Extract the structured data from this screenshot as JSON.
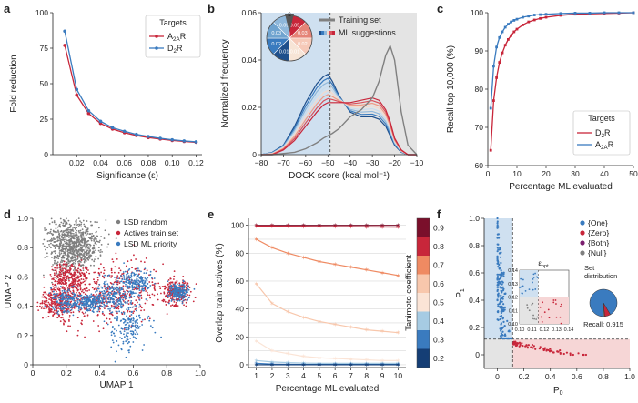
{
  "colors": {
    "red": "#c8263a",
    "blue": "#3a7bbf",
    "gray": "#7f7f7f",
    "purple": "#7b1f6f",
    "dark_blue": "#1e4f8c",
    "light_blue_fill": "#cfe0f0",
    "light_gray_fill": "#e4e4e4",
    "light_red_fill": "#f6d6d6"
  },
  "chart_data": [
    {
      "panel": "a",
      "type": "line",
      "xlabel": "Significance (ε)",
      "ylabel": "Fold reduction",
      "xlim": [
        0,
        0.125
      ],
      "ylim": [
        0,
        100
      ],
      "xticks": [
        "0.02",
        "0.04",
        "0.06",
        "0.08",
        "0.10",
        "0.12"
      ],
      "yticks": [
        "0",
        "25",
        "50",
        "75",
        "100"
      ],
      "legend": {
        "title": "Targets",
        "position": "top-right"
      },
      "x": [
        0.01,
        0.02,
        0.03,
        0.04,
        0.05,
        0.06,
        0.07,
        0.08,
        0.09,
        0.1,
        0.11,
        0.12
      ],
      "series": [
        {
          "name": "A2AR",
          "name_main": "A",
          "name_sub": "2A",
          "name_tail": "R",
          "color": "#c8263a",
          "values": [
            77,
            42,
            29,
            22,
            18,
            15.5,
            13.5,
            12,
            11,
            10,
            9.3,
            8.7
          ]
        },
        {
          "name": "D2R",
          "name_main": "D",
          "name_sub": "2",
          "name_tail": "R",
          "color": "#3a7bbf",
          "values": [
            87,
            46,
            31,
            23.5,
            19,
            16.5,
            14.3,
            12.8,
            11.5,
            10.5,
            9.7,
            9.0
          ]
        }
      ]
    },
    {
      "panel": "b",
      "type": "area",
      "xlabel": "DOCK score (kcal mol⁻¹)",
      "ylabel": "Normalized frequency",
      "xlim": [
        -80,
        -10
      ],
      "ylim": [
        0,
        0.06
      ],
      "xticks": [
        "−80",
        "−70",
        "−60",
        "−50",
        "−40",
        "−30",
        "−20",
        "−10"
      ],
      "yticks": [
        "0",
        "0.02",
        "0.04",
        "0.06"
      ],
      "threshold": -49,
      "legend_items": [
        "Training set",
        "ML suggestions"
      ],
      "pie_labels": [
        "0.01",
        "0.02",
        "0.03",
        "0.05",
        "0.05",
        "0.03",
        "0.02",
        "0.01"
      ],
      "pie_symbol": "ε",
      "x": [
        -80,
        -75,
        -70,
        -65,
        -60,
        -55,
        -52,
        -50,
        -48,
        -45,
        -40,
        -35,
        -30,
        -27,
        -24,
        -22,
        -20,
        -17,
        -14,
        -10
      ],
      "training_set": [
        0,
        0,
        0.0005,
        0.001,
        0.0025,
        0.005,
        0.007,
        0.008,
        0.009,
        0.011,
        0.016,
        0.019,
        0.024,
        0.031,
        0.042,
        0.046,
        0.04,
        0.018,
        0.004,
        0
      ],
      "ml_blue_top": [
        0,
        0.001,
        0.004,
        0.012,
        0.022,
        0.03,
        0.033,
        0.034,
        0.031,
        0.025,
        0.018,
        0.016,
        0.016,
        0.015,
        0.012,
        0.008,
        0.004,
        0.001,
        0,
        0
      ],
      "ml_red_top": [
        0,
        0,
        0.002,
        0.006,
        0.012,
        0.018,
        0.021,
        0.022,
        0.022,
        0.022,
        0.022,
        0.023,
        0.024,
        0.023,
        0.019,
        0.014,
        0.007,
        0.002,
        0,
        0
      ]
    },
    {
      "panel": "c",
      "type": "line",
      "xlabel": "Percentage ML evaluated",
      "ylabel": "Recall top 10,000 (%)",
      "xlim": [
        0,
        50
      ],
      "ylim": [
        60,
        100
      ],
      "xticks": [
        "0",
        "10",
        "20",
        "30",
        "40",
        "50"
      ],
      "yticks": [
        "60",
        "70",
        "80",
        "90",
        "100"
      ],
      "legend": {
        "title": "Targets",
        "position": "bottom-right"
      },
      "x": [
        1,
        2,
        3,
        4,
        5,
        6,
        7,
        8,
        9,
        10,
        12,
        14,
        16,
        18,
        20,
        25,
        30,
        35,
        40,
        45,
        50
      ],
      "series": [
        {
          "name": "D2R",
          "name_main": "D",
          "name_sub": "2",
          "name_tail": "R",
          "color": "#c8263a",
          "values": [
            64,
            77,
            83,
            87,
            89.5,
            91.5,
            93,
            94,
            95,
            95.7,
            96.8,
            97.6,
            98.1,
            98.5,
            98.8,
            99.3,
            99.6,
            99.7,
            99.8,
            99.9,
            100
          ]
        },
        {
          "name": "A2AR",
          "name_main": "A",
          "name_sub": "2A",
          "name_tail": "R",
          "color": "#3a7bbf",
          "values": [
            75,
            86,
            91,
            93.5,
            95,
            96.2,
            97,
            97.6,
            98,
            98.3,
            98.8,
            99.1,
            99.4,
            99.5,
            99.6,
            99.8,
            99.9,
            99.9,
            100,
            100,
            100
          ]
        }
      ]
    },
    {
      "panel": "d",
      "type": "scatter",
      "xlabel": "UMAP 1",
      "ylabel": "UMAP 2",
      "xlim": [
        0,
        1.0
      ],
      "ylim": [
        0,
        1.0
      ],
      "xticks": [
        "0",
        "0.2",
        "0.4",
        "0.6",
        "0.8",
        "1.0"
      ],
      "yticks": [
        "0",
        "0.2",
        "0.4",
        "0.6",
        "0.8",
        "1.0"
      ],
      "legend_items": [
        "LSD random",
        "Actives train set",
        "LSD ML priority"
      ]
    },
    {
      "panel": "e",
      "type": "line",
      "xlabel": "Percentage ML evaluated",
      "ylabel": "Overlap train actives (%)",
      "xlim": [
        0.5,
        10.5
      ],
      "ylim": [
        0,
        100
      ],
      "xticks": [
        "1",
        "2",
        "3",
        "4",
        "5",
        "6",
        "7",
        "8",
        "9",
        "10"
      ],
      "yticks": [
        "0",
        "20",
        "40",
        "60",
        "80",
        "100"
      ],
      "colorbar_label": "Tanimoto coefficient",
      "colorbar_ticks": [
        "0.9",
        "0.8",
        "0.7",
        "0.6",
        "0.5",
        "0.4",
        "0.3",
        "0.2"
      ],
      "x": [
        1,
        2,
        3,
        4,
        5,
        6,
        7,
        8,
        9,
        10
      ],
      "series": [
        {
          "name": "0.9",
          "color": "#7a0f2b",
          "values": [
            100,
            100,
            100,
            100,
            100,
            100,
            100,
            100,
            100,
            100
          ]
        },
        {
          "name": "0.8",
          "color": "#c8263a",
          "values": [
            99.5,
            99.5,
            99.3,
            99.2,
            99.1,
            99,
            99,
            98.9,
            98.8,
            98.7
          ]
        },
        {
          "name": "0.7",
          "color": "#ef8a62",
          "values": [
            90,
            84,
            80,
            77,
            74,
            72,
            70,
            68,
            66,
            64
          ]
        },
        {
          "name": "0.6",
          "color": "#f8c7ac",
          "values": [
            58,
            44,
            38,
            34,
            31,
            29,
            27,
            25,
            24,
            23
          ]
        },
        {
          "name": "0.5",
          "color": "#fbe4d6",
          "values": [
            17,
            10,
            8,
            6,
            5,
            4.5,
            4,
            3.5,
            3,
            3
          ]
        },
        {
          "name": "0.4",
          "color": "#a6cbe3",
          "values": [
            3,
            2,
            1.5,
            1.2,
            1,
            1,
            1,
            1,
            1,
            1
          ]
        },
        {
          "name": "0.3",
          "color": "#3a7bbf",
          "values": [
            1,
            0.5,
            0.3,
            0.2,
            0.2,
            0.2,
            0.2,
            0.2,
            0.2,
            0.2
          ]
        },
        {
          "name": "0.2",
          "color": "#153e75",
          "values": [
            0,
            0,
            0,
            0,
            0,
            0,
            0,
            0,
            0,
            0
          ]
        }
      ]
    },
    {
      "panel": "f",
      "type": "scatter",
      "xlabel": "P0",
      "xlabel_main": "P",
      "xlabel_sub": "0",
      "ylabel": "P1",
      "ylabel_main": "P",
      "ylabel_sub": "1",
      "xlim": [
        -0.1,
        1.0
      ],
      "ylim": [
        -0.1,
        1.0
      ],
      "xticks": [
        "0",
        "0.2",
        "0.4",
        "0.6",
        "0.8",
        "1.0"
      ],
      "yticks": [
        "0",
        "0.2",
        "0.4",
        "0.6",
        "0.8",
        "1.0"
      ],
      "epsilon_threshold": 0.115,
      "legend_items": [
        "{One}",
        "{Zero}",
        "{Both}",
        "{Null}"
      ],
      "legend_colors": [
        "#3a7bbf",
        "#c8263a",
        "#7b1f6f",
        "#7f7f7f"
      ],
      "set_distribution_title": "Set\ndistribution",
      "set_distribution": [
        0.915,
        0.07,
        0.015
      ],
      "recall_text": "Recall: 0.915",
      "inset": {
        "label": "εopt",
        "label_main": "ε",
        "label_sub": "opt",
        "xlim": [
          0.1,
          0.14
        ],
        "ylim": [
          0.1,
          0.14
        ],
        "xticks": [
          "0.10",
          "0.11",
          "0.12",
          "0.13",
          "0.14"
        ],
        "yticks": [
          "0.10",
          "0.11",
          "0.12",
          "0.13",
          "0.14"
        ]
      }
    }
  ],
  "panel_letters": [
    "a",
    "b",
    "c",
    "d",
    "e",
    "f"
  ]
}
